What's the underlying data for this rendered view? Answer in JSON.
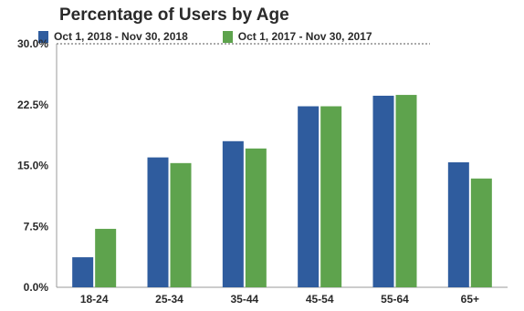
{
  "chart_data": {
    "type": "bar",
    "title": "Percentage of Users by Age",
    "xlabel": "",
    "ylabel": "",
    "categories": [
      "18-24",
      "25-34",
      "35-44",
      "45-54",
      "55-64",
      "65+"
    ],
    "series": [
      {
        "name": "Oct 1, 2018 - Nov 30, 2018",
        "color": "#2f5c9e",
        "values": [
          3.7,
          16.0,
          18.0,
          22.3,
          23.6,
          15.4
        ]
      },
      {
        "name": "Oct 1, 2017 - Nov 30, 2017",
        "color": "#5ea34d",
        "values": [
          7.2,
          15.3,
          17.1,
          22.3,
          23.7,
          13.4
        ]
      }
    ],
    "ylim": [
      0,
      30
    ],
    "yticks": [
      "0.0%",
      "7.5%",
      "15.0%",
      "22.5%",
      "30.0%"
    ],
    "grid": false,
    "legend_position": "top"
  }
}
